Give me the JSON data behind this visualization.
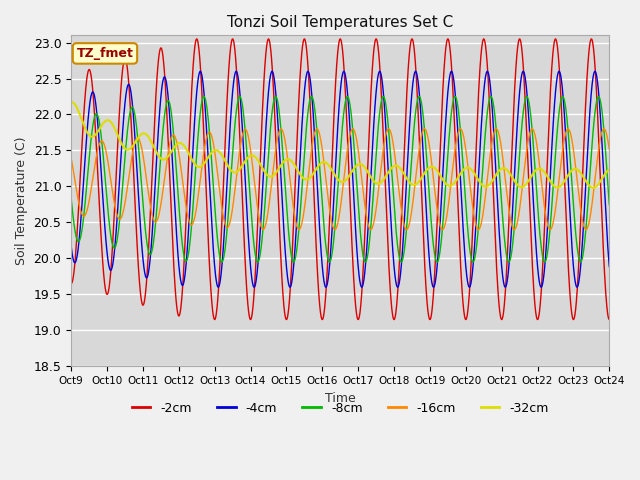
{
  "title": "Tonzi Soil Temperatures Set C",
  "xlabel": "Time",
  "ylabel": "Soil Temperature (C)",
  "ylim": [
    18.5,
    23.1
  ],
  "xlim": [
    0,
    360
  ],
  "fig_facecolor": "#f0f0f0",
  "ax_facecolor": "#d8d8d8",
  "legend_label": "TZ_fmet",
  "series": {
    "2cm": {
      "color": "#dd0000",
      "label": "-2cm"
    },
    "4cm": {
      "color": "#0000dd",
      "label": "-4cm"
    },
    "8cm": {
      "color": "#00bb00",
      "label": "-8cm"
    },
    "16cm": {
      "color": "#ff8800",
      "label": "-16cm"
    },
    "32cm": {
      "color": "#dddd00",
      "label": "-32cm"
    }
  },
  "x_tick_labels": [
    "Oct 9",
    "Oct 10",
    "Oct 11",
    "Oct 12",
    "Oct 13",
    "Oct 14",
    "Oct 15",
    "Oct 16",
    "Oct 17",
    "Oct 18",
    "Oct 19",
    "Oct 20",
    "Oct 21",
    "Oct 22",
    "Oct 23",
    "Oct 24"
  ],
  "x_tick_positions": [
    0,
    24,
    48,
    72,
    96,
    120,
    144,
    168,
    192,
    216,
    240,
    264,
    288,
    312,
    336,
    360
  ],
  "yticks": [
    18.5,
    19.0,
    19.5,
    20.0,
    20.5,
    21.0,
    21.5,
    22.0,
    22.5,
    23.0
  ]
}
